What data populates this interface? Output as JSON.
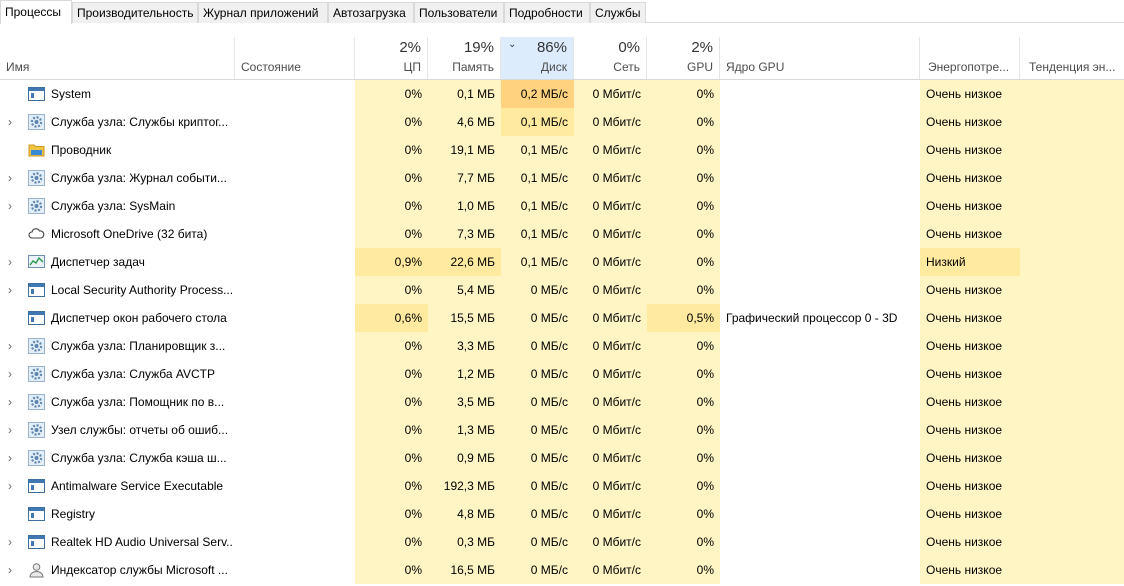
{
  "tabs": [
    {
      "label": "Процессы",
      "active": true
    },
    {
      "label": "Производительность",
      "active": false
    },
    {
      "label": "Журнал приложений",
      "active": false
    },
    {
      "label": "Автозагрузка",
      "active": false
    },
    {
      "label": "Пользователи",
      "active": false
    },
    {
      "label": "Подробности",
      "active": false
    },
    {
      "label": "Службы",
      "active": false
    }
  ],
  "header": {
    "name": "Имя",
    "status": "Состояние",
    "cpu": {
      "pct": "2%",
      "label": "ЦП"
    },
    "memory": {
      "pct": "19%",
      "label": "Память"
    },
    "disk": {
      "pct": "86%",
      "label": "Диск"
    },
    "network": {
      "pct": "0%",
      "label": "Сеть"
    },
    "gpu": {
      "pct": "2%",
      "label": "GPU"
    },
    "gpu_engine": "Ядро GPU",
    "power": "Энергопотре...",
    "power_trend": "Тенденция эн..."
  },
  "colors": {
    "heat_low": "#fff4c4",
    "heat_mid": "#ffeaa0",
    "heat_high": "#ffd280",
    "sorted_header": "#dcecfc"
  },
  "processes": [
    {
      "name": "System",
      "icon": "window-icon",
      "expandable": false,
      "cpu": "0%",
      "memory": "0,1 МБ",
      "disk": "0,2 МБ/с",
      "network": "0 Мбит/с",
      "gpu": "0%",
      "gpu_engine": "",
      "power": "Очень низкое",
      "heat": {
        "cpu": 0,
        "memory": 0,
        "disk": 2,
        "network": 0,
        "gpu": 0,
        "power": 0
      }
    },
    {
      "name": "Служба узла: Службы криптог...",
      "icon": "gear-icon",
      "expandable": true,
      "cpu": "0%",
      "memory": "4,6 МБ",
      "disk": "0,1 МБ/с",
      "network": "0 Мбит/с",
      "gpu": "0%",
      "gpu_engine": "",
      "power": "Очень низкое",
      "heat": {
        "cpu": 0,
        "memory": 0,
        "disk": 1,
        "network": 0,
        "gpu": 0,
        "power": 0
      }
    },
    {
      "name": "Проводник",
      "icon": "folder-icon",
      "expandable": false,
      "cpu": "0%",
      "memory": "19,1 МБ",
      "disk": "0,1 МБ/с",
      "network": "0 Мбит/с",
      "gpu": "0%",
      "gpu_engine": "",
      "power": "Очень низкое",
      "heat": {
        "cpu": 0,
        "memory": 0,
        "disk": 0,
        "network": 0,
        "gpu": 0,
        "power": 0
      }
    },
    {
      "name": "Служба узла: Журнал событи...",
      "icon": "gear-icon",
      "expandable": true,
      "cpu": "0%",
      "memory": "7,7 МБ",
      "disk": "0,1 МБ/с",
      "network": "0 Мбит/с",
      "gpu": "0%",
      "gpu_engine": "",
      "power": "Очень низкое",
      "heat": {
        "cpu": 0,
        "memory": 0,
        "disk": 0,
        "network": 0,
        "gpu": 0,
        "power": 0
      }
    },
    {
      "name": "Служба узла: SysMain",
      "icon": "gear-icon",
      "expandable": true,
      "cpu": "0%",
      "memory": "1,0 МБ",
      "disk": "0,1 МБ/с",
      "network": "0 Мбит/с",
      "gpu": "0%",
      "gpu_engine": "",
      "power": "Очень низкое",
      "heat": {
        "cpu": 0,
        "memory": 0,
        "disk": 0,
        "network": 0,
        "gpu": 0,
        "power": 0
      }
    },
    {
      "name": "Microsoft OneDrive (32 бита)",
      "icon": "cloud-icon",
      "expandable": false,
      "cpu": "0%",
      "memory": "7,3 МБ",
      "disk": "0,1 МБ/с",
      "network": "0 Мбит/с",
      "gpu": "0%",
      "gpu_engine": "",
      "power": "Очень низкое",
      "heat": {
        "cpu": 0,
        "memory": 0,
        "disk": 0,
        "network": 0,
        "gpu": 0,
        "power": 0
      }
    },
    {
      "name": "Диспетчер задач",
      "icon": "task-manager-icon",
      "expandable": true,
      "cpu": "0,9%",
      "memory": "22,6 МБ",
      "disk": "0,1 МБ/с",
      "network": "0 Мбит/с",
      "gpu": "0%",
      "gpu_engine": "",
      "power": "Низкий",
      "heat": {
        "cpu": 1,
        "memory": 1,
        "disk": 0,
        "network": 0,
        "gpu": 0,
        "power": 1
      }
    },
    {
      "name": "Local Security Authority Process...",
      "icon": "window-icon",
      "expandable": true,
      "cpu": "0%",
      "memory": "5,4 МБ",
      "disk": "0 МБ/с",
      "network": "0 Мбит/с",
      "gpu": "0%",
      "gpu_engine": "",
      "power": "Очень низкое",
      "heat": {
        "cpu": 0,
        "memory": 0,
        "disk": 0,
        "network": 0,
        "gpu": 0,
        "power": 0
      }
    },
    {
      "name": "Диспетчер окон рабочего стола",
      "icon": "window-icon",
      "expandable": false,
      "cpu": "0,6%",
      "memory": "15,5 МБ",
      "disk": "0 МБ/с",
      "network": "0 Мбит/с",
      "gpu": "0,5%",
      "gpu_engine": "Графический процессор 0 - 3D",
      "power": "Очень низкое",
      "heat": {
        "cpu": 1,
        "memory": 0,
        "disk": 0,
        "network": 0,
        "gpu": 1,
        "power": 0
      }
    },
    {
      "name": "Служба узла: Планировщик з...",
      "icon": "gear-icon",
      "expandable": true,
      "cpu": "0%",
      "memory": "3,3 МБ",
      "disk": "0 МБ/с",
      "network": "0 Мбит/с",
      "gpu": "0%",
      "gpu_engine": "",
      "power": "Очень низкое",
      "heat": {
        "cpu": 0,
        "memory": 0,
        "disk": 0,
        "network": 0,
        "gpu": 0,
        "power": 0
      }
    },
    {
      "name": "Служба узла: Служба AVCTP",
      "icon": "gear-icon",
      "expandable": true,
      "cpu": "0%",
      "memory": "1,2 МБ",
      "disk": "0 МБ/с",
      "network": "0 Мбит/с",
      "gpu": "0%",
      "gpu_engine": "",
      "power": "Очень низкое",
      "heat": {
        "cpu": 0,
        "memory": 0,
        "disk": 0,
        "network": 0,
        "gpu": 0,
        "power": 0
      }
    },
    {
      "name": "Служба узла: Помощник по в...",
      "icon": "gear-icon",
      "expandable": true,
      "cpu": "0%",
      "memory": "3,5 МБ",
      "disk": "0 МБ/с",
      "network": "0 Мбит/с",
      "gpu": "0%",
      "gpu_engine": "",
      "power": "Очень низкое",
      "heat": {
        "cpu": 0,
        "memory": 0,
        "disk": 0,
        "network": 0,
        "gpu": 0,
        "power": 0
      }
    },
    {
      "name": "Узел службы: отчеты об ошиб...",
      "icon": "gear-icon",
      "expandable": true,
      "cpu": "0%",
      "memory": "1,3 МБ",
      "disk": "0 МБ/с",
      "network": "0 Мбит/с",
      "gpu": "0%",
      "gpu_engine": "",
      "power": "Очень низкое",
      "heat": {
        "cpu": 0,
        "memory": 0,
        "disk": 0,
        "network": 0,
        "gpu": 0,
        "power": 0
      }
    },
    {
      "name": "Служба узла: Служба кэша ш...",
      "icon": "gear-icon",
      "expandable": true,
      "cpu": "0%",
      "memory": "0,9 МБ",
      "disk": "0 МБ/с",
      "network": "0 Мбит/с",
      "gpu": "0%",
      "gpu_engine": "",
      "power": "Очень низкое",
      "heat": {
        "cpu": 0,
        "memory": 0,
        "disk": 0,
        "network": 0,
        "gpu": 0,
        "power": 0
      }
    },
    {
      "name": "Antimalware Service Executable",
      "icon": "window-icon",
      "expandable": true,
      "cpu": "0%",
      "memory": "192,3 МБ",
      "disk": "0 МБ/с",
      "network": "0 Мбит/с",
      "gpu": "0%",
      "gpu_engine": "",
      "power": "Очень низкое",
      "heat": {
        "cpu": 0,
        "memory": 0,
        "disk": 0,
        "network": 0,
        "gpu": 0,
        "power": 0
      }
    },
    {
      "name": "Registry",
      "icon": "window-icon",
      "expandable": false,
      "cpu": "0%",
      "memory": "4,8 МБ",
      "disk": "0 МБ/с",
      "network": "0 Мбит/с",
      "gpu": "0%",
      "gpu_engine": "",
      "power": "Очень низкое",
      "heat": {
        "cpu": 0,
        "memory": 0,
        "disk": 0,
        "network": 0,
        "gpu": 0,
        "power": 0
      }
    },
    {
      "name": "Realtek HD Audio Universal Serv...",
      "icon": "window-icon",
      "expandable": true,
      "cpu": "0%",
      "memory": "0,3 МБ",
      "disk": "0 МБ/с",
      "network": "0 Мбит/с",
      "gpu": "0%",
      "gpu_engine": "",
      "power": "Очень низкое",
      "heat": {
        "cpu": 0,
        "memory": 0,
        "disk": 0,
        "network": 0,
        "gpu": 0,
        "power": 0
      }
    },
    {
      "name": "Индексатор службы Microsoft ...",
      "icon": "user-icon",
      "expandable": true,
      "cpu": "0%",
      "memory": "16,5 МБ",
      "disk": "0 МБ/с",
      "network": "0 Мбит/с",
      "gpu": "0%",
      "gpu_engine": "",
      "power": "Очень низкое",
      "heat": {
        "cpu": 0,
        "memory": 0,
        "disk": 0,
        "network": 0,
        "gpu": 0,
        "power": 0
      }
    }
  ]
}
